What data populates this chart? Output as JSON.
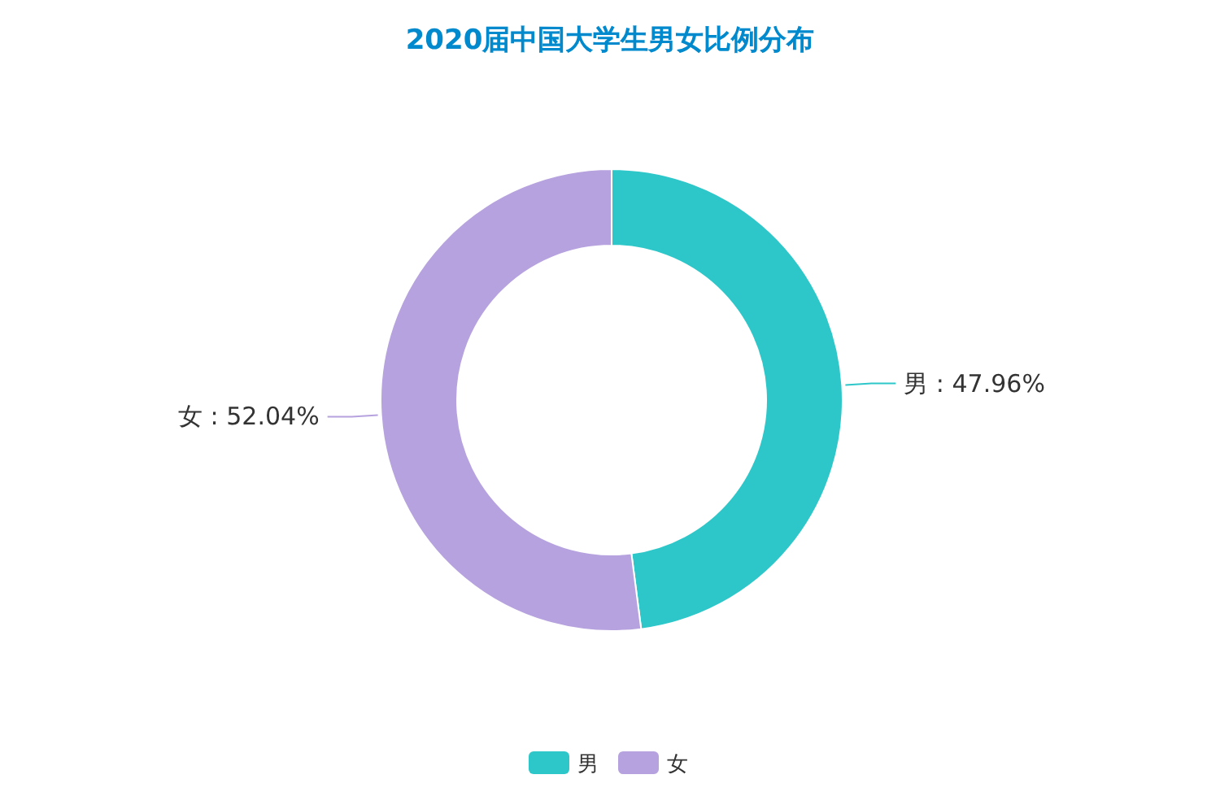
{
  "chart_data": {
    "type": "donut",
    "title": "2020届中国大学生男女比例分布",
    "categories": [
      "男",
      "女"
    ],
    "values": [
      47.96,
      52.04
    ],
    "colors": [
      "#2ec7c9",
      "#b6a2de"
    ],
    "value_labels": [
      "男 : 47.96%",
      "女 : 52.04%"
    ],
    "legend": "bottom"
  }
}
